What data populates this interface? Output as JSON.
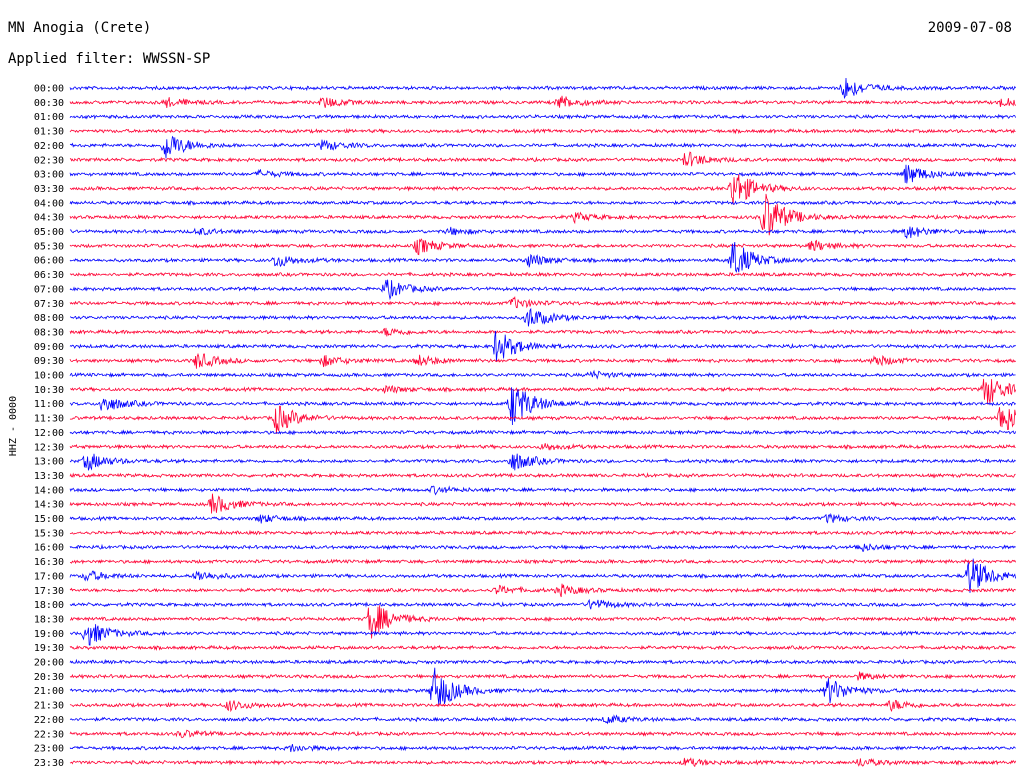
{
  "header": {
    "station": "MN Anogia (Crete)",
    "filter": "Applied filter: WWSSN-SP",
    "date": "2009-07-08"
  },
  "colors": {
    "trace_a": "#0000ff",
    "trace_b": "#ff0033",
    "background": "#ffffff"
  },
  "chart_data": {
    "type": "line",
    "title": "MN Anogia (Crete)",
    "subtitle": "Applied filter: WWSSN-SP",
    "date": "2009-07-08",
    "ylabel": "HHZ - 0000",
    "xlabel": "",
    "row_labels": [
      "00:00",
      "00:30",
      "01:00",
      "01:30",
      "02:00",
      "02:30",
      "03:00",
      "03:30",
      "04:00",
      "04:30",
      "05:00",
      "05:30",
      "06:00",
      "06:30",
      "07:00",
      "07:30",
      "08:00",
      "08:30",
      "09:00",
      "09:30",
      "10:00",
      "10:30",
      "11:00",
      "11:30",
      "12:00",
      "12:30",
      "13:00",
      "13:30",
      "14:00",
      "14:30",
      "15:00",
      "15:30",
      "16:00",
      "16:30",
      "17:00",
      "17:30",
      "18:00",
      "18:30",
      "19:00",
      "19:30",
      "20:00",
      "20:30",
      "21:00",
      "21:30",
      "22:00",
      "22:30",
      "23:00",
      "23:30"
    ],
    "row_minutes": 30,
    "events": [
      {
        "row": 0,
        "minute": 24.5,
        "amp": 1.8
      },
      {
        "row": 1,
        "minute": 8,
        "amp": 0.8
      },
      {
        "row": 1,
        "minute": 15.5,
        "amp": 1.0
      },
      {
        "row": 1,
        "minute": 3.0,
        "amp": 0.7
      },
      {
        "row": 1,
        "minute": 29.5,
        "amp": 0.6
      },
      {
        "row": 4,
        "minute": 3,
        "amp": 2.2
      },
      {
        "row": 4,
        "minute": 8,
        "amp": 0.8
      },
      {
        "row": 5,
        "minute": 19.5,
        "amp": 1.2
      },
      {
        "row": 6,
        "minute": 26.5,
        "amp": 1.5
      },
      {
        "row": 6,
        "minute": 6,
        "amp": 0.5
      },
      {
        "row": 7,
        "minute": 21,
        "amp": 3.0
      },
      {
        "row": 9,
        "minute": 16,
        "amp": 0.6
      },
      {
        "row": 9,
        "minute": 22.0,
        "amp": 4.0
      },
      {
        "row": 10,
        "minute": 12,
        "amp": 0.5
      },
      {
        "row": 10,
        "minute": 4,
        "amp": 0.5
      },
      {
        "row": 10,
        "minute": 26.5,
        "amp": 1.0
      },
      {
        "row": 11,
        "minute": 11.0,
        "amp": 1.2
      },
      {
        "row": 11,
        "minute": 23.5,
        "amp": 0.8
      },
      {
        "row": 12,
        "minute": 6.5,
        "amp": 1.0
      },
      {
        "row": 12,
        "minute": 14.5,
        "amp": 1.0
      },
      {
        "row": 12,
        "minute": 21.0,
        "amp": 3.0
      },
      {
        "row": 14,
        "minute": 10.0,
        "amp": 1.5
      },
      {
        "row": 15,
        "minute": 14.0,
        "amp": 0.8
      },
      {
        "row": 16,
        "minute": 14.5,
        "amp": 1.6
      },
      {
        "row": 17,
        "minute": 10.0,
        "amp": 0.6
      },
      {
        "row": 18,
        "minute": 13.5,
        "amp": 2.5
      },
      {
        "row": 19,
        "minute": 4,
        "amp": 1.2
      },
      {
        "row": 19,
        "minute": 8,
        "amp": 0.8
      },
      {
        "row": 19,
        "minute": 11.0,
        "amp": 0.8
      },
      {
        "row": 19,
        "minute": 25.5,
        "amp": 0.8
      },
      {
        "row": 20,
        "minute": 16.5,
        "amp": 0.5
      },
      {
        "row": 21,
        "minute": 10.0,
        "amp": 0.5
      },
      {
        "row": 21,
        "minute": 29.0,
        "amp": 2.5
      },
      {
        "row": 22,
        "minute": 1.0,
        "amp": 1.3
      },
      {
        "row": 22,
        "minute": 14.0,
        "amp": 3.5
      },
      {
        "row": 23,
        "minute": 6.5,
        "amp": 2.2
      },
      {
        "row": 23,
        "minute": 29.5,
        "amp": 2.5
      },
      {
        "row": 25,
        "minute": 15.0,
        "amp": 0.5
      },
      {
        "row": 26,
        "minute": 0.5,
        "amp": 1.4
      },
      {
        "row": 26,
        "minute": 14.0,
        "amp": 1.5
      },
      {
        "row": 28,
        "minute": 11.5,
        "amp": 0.5
      },
      {
        "row": 29,
        "minute": 4.5,
        "amp": 1.5
      },
      {
        "row": 30,
        "minute": 6.0,
        "amp": 0.6
      },
      {
        "row": 30,
        "minute": 24.0,
        "amp": 0.6
      },
      {
        "row": 32,
        "minute": 25.0,
        "amp": 0.6
      },
      {
        "row": 34,
        "minute": 0.5,
        "amp": 0.8
      },
      {
        "row": 34,
        "minute": 4.0,
        "amp": 0.8
      },
      {
        "row": 34,
        "minute": 28.5,
        "amp": 3.0
      },
      {
        "row": 35,
        "minute": 13.5,
        "amp": 0.6
      },
      {
        "row": 35,
        "minute": 15.5,
        "amp": 0.8
      },
      {
        "row": 36,
        "minute": 16.5,
        "amp": 0.8
      },
      {
        "row": 37,
        "minute": 9.5,
        "amp": 3.0
      },
      {
        "row": 38,
        "minute": 0.5,
        "amp": 2.0
      },
      {
        "row": 41,
        "minute": 25.0,
        "amp": 0.5
      },
      {
        "row": 42,
        "minute": 11.5,
        "amp": 3.5
      },
      {
        "row": 42,
        "minute": 24.0,
        "amp": 2.0
      },
      {
        "row": 43,
        "minute": 5.0,
        "amp": 0.8
      },
      {
        "row": 43,
        "minute": 26.0,
        "amp": 0.8
      },
      {
        "row": 44,
        "minute": 17.0,
        "amp": 0.6
      },
      {
        "row": 45,
        "minute": 3.5,
        "amp": 0.5
      },
      {
        "row": 46,
        "minute": 7.0,
        "amp": 0.5
      },
      {
        "row": 47,
        "minute": 19.5,
        "amp": 0.6
      },
      {
        "row": 47,
        "minute": 25.0,
        "amp": 0.6
      }
    ]
  }
}
